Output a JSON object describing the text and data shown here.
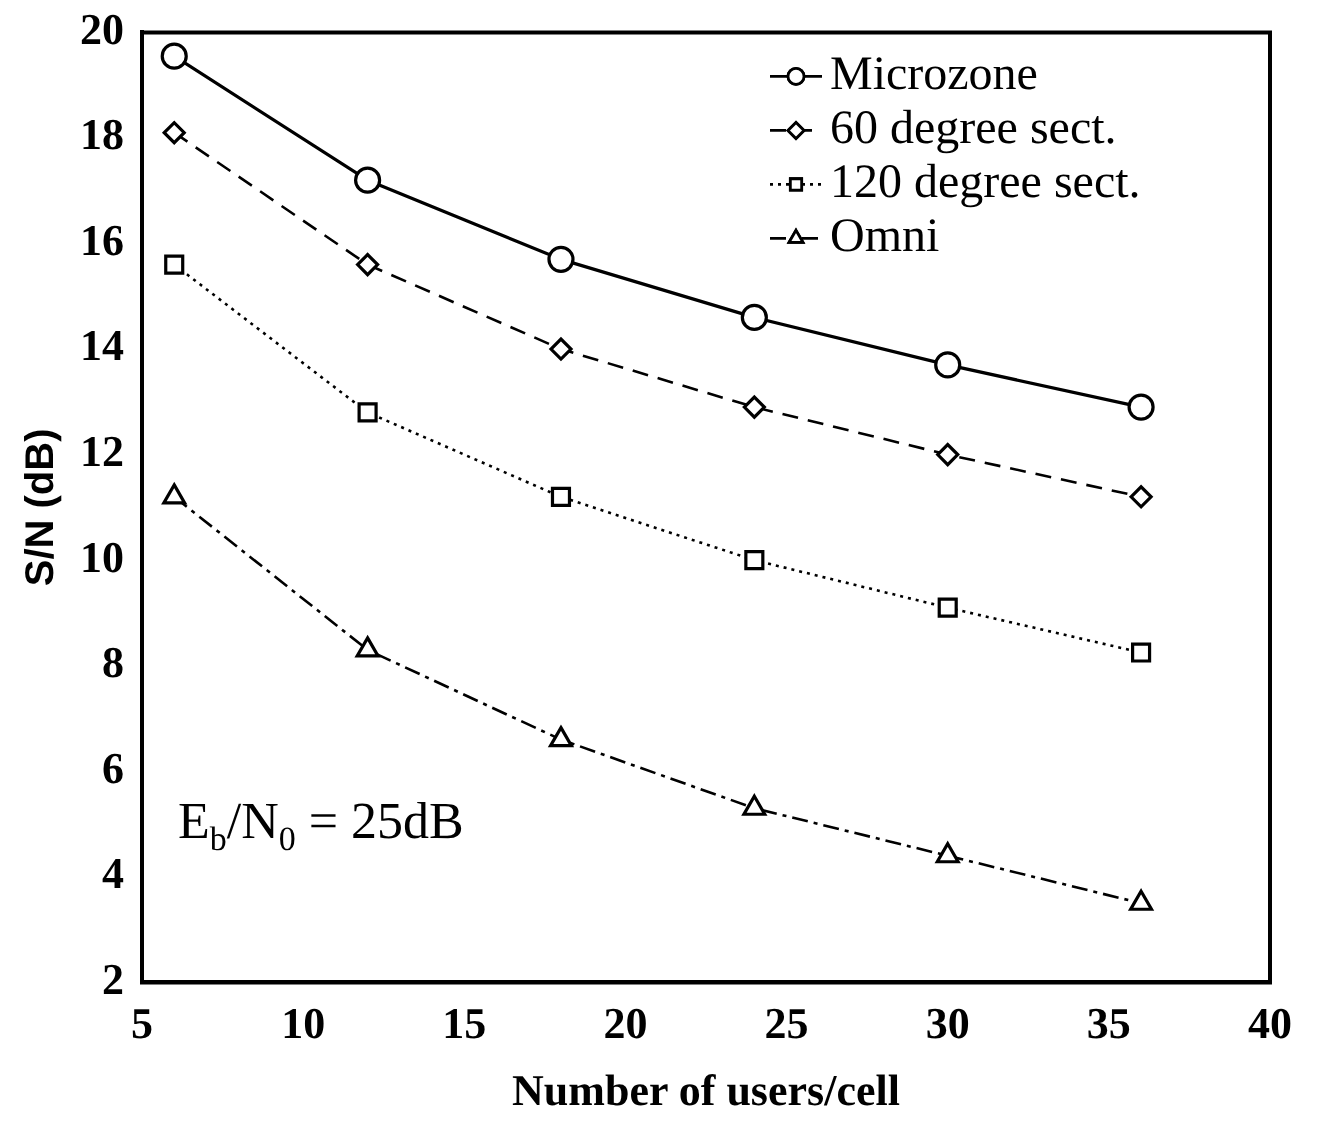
{
  "chart_data": {
    "type": "line",
    "xlabel": "Number of users/cell",
    "ylabel": "S/N (dB)",
    "x": [
      6,
      12,
      18,
      24,
      30,
      36
    ],
    "xlim": [
      5,
      40
    ],
    "xticks": [
      5,
      10,
      15,
      20,
      25,
      30,
      35,
      40
    ],
    "ylim": [
      2,
      20
    ],
    "yticks": [
      2,
      4,
      6,
      8,
      10,
      12,
      14,
      16,
      18,
      20
    ],
    "grid": false,
    "legend": "top right",
    "annotations": [
      "E$_{b}$/N$_{0}$ = 25dB"
    ],
    "series": [
      {
        "name": "Microzone",
        "color": "#000000",
        "marker": "circle",
        "line_style": "solid",
        "values": [
          19.55,
          17.2,
          15.7,
          14.6,
          13.7,
          12.9
        ]
      },
      {
        "name": "60 degree sect.",
        "color": "#000000",
        "marker": "diamond",
        "line_style": "dashed",
        "values": [
          18.1,
          15.6,
          14.0,
          12.9,
          12.0,
          11.2
        ]
      },
      {
        "name": "120 degree sect.",
        "color": "#000000",
        "marker": "square",
        "line_style": "dotted",
        "values": [
          15.6,
          12.8,
          11.2,
          10.0,
          9.1,
          8.25
        ]
      },
      {
        "name": "Omni",
        "color": "#000000",
        "marker": "triangle",
        "line_style": "dashdot",
        "values": [
          11.2,
          8.3,
          6.6,
          5.3,
          4.4,
          3.5
        ]
      }
    ]
  }
}
